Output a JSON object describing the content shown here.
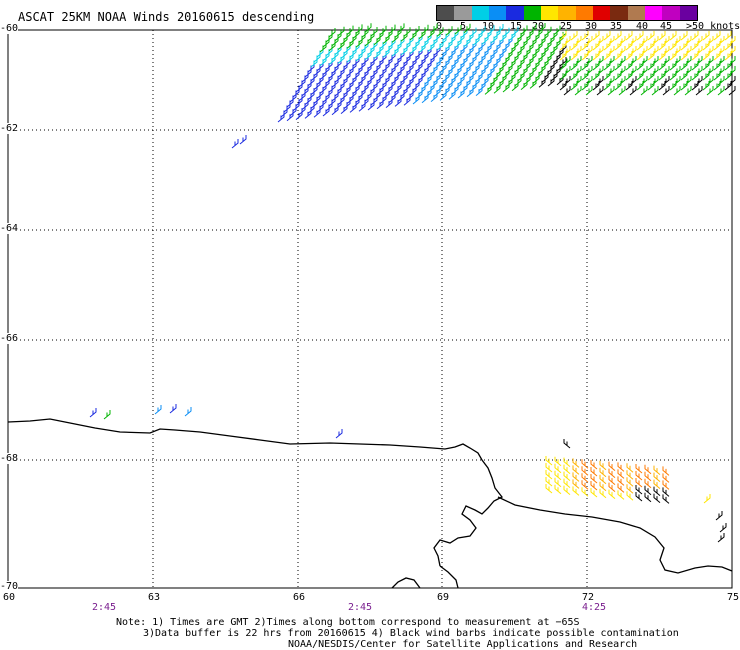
{
  "title": "ASCAT 25KM NOAA Winds 20160615 descending",
  "scale": {
    "colors": [
      "#4d4d4d",
      "#9a9a9a",
      "#00cfe6",
      "#0a8ef5",
      "#1a2ae0",
      "#00b400",
      "#ffe600",
      "#ffb300",
      "#ff7a00",
      "#e00000",
      "#7a2a10",
      "#b07a50",
      "#ff00ff",
      "#c000c0",
      "#6a00a0"
    ],
    "labels": [
      "0",
      "5",
      "10",
      "15",
      "20",
      "25",
      "30",
      "35",
      "40",
      "45",
      ">50 knots"
    ]
  },
  "lat_labels": [
    "-60",
    "-62",
    "-64",
    "-66",
    "-68",
    "-70"
  ],
  "lon_labels": [
    "60",
    "63",
    "66",
    "69",
    "72",
    "75"
  ],
  "time_labels": [
    "2:45",
    "2:45",
    "4:25"
  ],
  "notes": [
    "Note: 1) Times are GMT 2)Times along bottom correspond to measurement at −65S",
    "3)Data buffer is 22 hrs from 20160615 4) Black wind barbs indicate possible contamination",
    "NOAA/NESDIS/Center for Satellite Applications and Research"
  ]
}
